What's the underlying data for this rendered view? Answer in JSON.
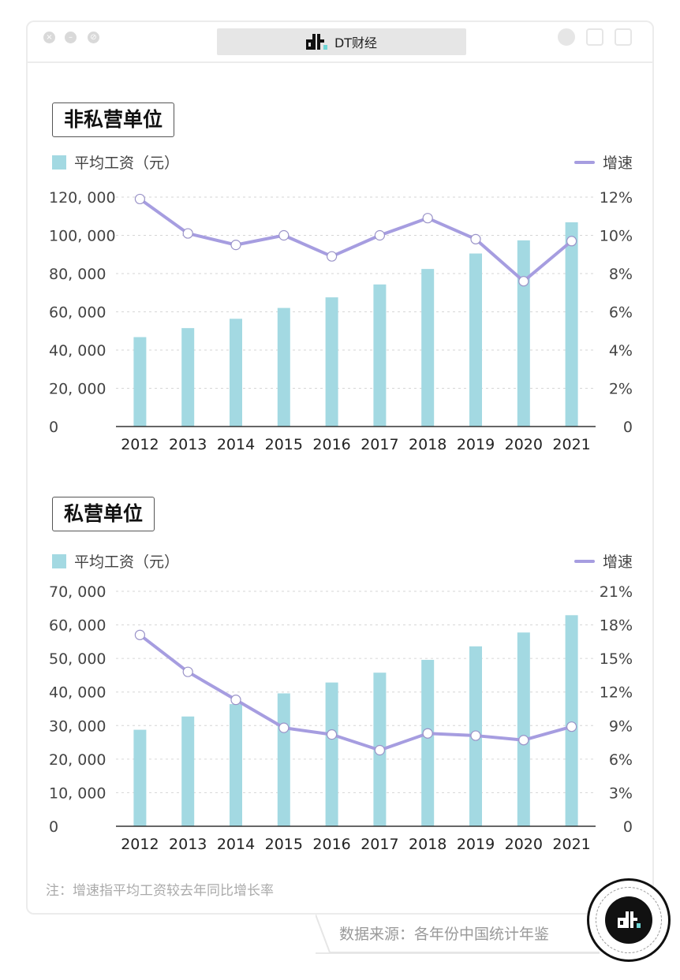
{
  "window": {
    "title": "DT财经"
  },
  "note": "注：增速指平均工资较去年同比增长率",
  "source": "数据来源：各年份中国统计年鉴",
  "colors": {
    "bar": "#a3d9e2",
    "line": "#a69de0",
    "grid": "#d6d6d6",
    "axis": "#333333",
    "accent": "#6fd6d6"
  },
  "chart_data": [
    {
      "type": "bar+line",
      "title": "非私营单位",
      "legend": {
        "bar": "平均工资（元）",
        "line": "增速",
        "position": "top"
      },
      "categories": [
        "2012",
        "2013",
        "2014",
        "2015",
        "2016",
        "2017",
        "2018",
        "2019",
        "2020",
        "2021"
      ],
      "series": [
        {
          "name": "平均工资（元）",
          "axis": "left",
          "type": "bar",
          "values": [
            46769,
            51483,
            56360,
            62029,
            67569,
            74318,
            82413,
            90501,
            97379,
            106837
          ]
        },
        {
          "name": "增速",
          "axis": "right",
          "type": "line",
          "values": [
            11.9,
            10.1,
            9.5,
            10.0,
            8.9,
            10.0,
            10.9,
            9.8,
            7.6,
            9.7
          ]
        }
      ],
      "ylim_left": [
        0,
        120000
      ],
      "yticks_left": [
        "0",
        "20, 000",
        "40, 000",
        "60, 000",
        "80, 000",
        "100, 000",
        "120, 000"
      ],
      "ylim_right": [
        0,
        12
      ],
      "yticks_right": [
        "0",
        "2%",
        "4%",
        "6%",
        "8%",
        "10%",
        "12%"
      ],
      "grid": true
    },
    {
      "type": "bar+line",
      "title": "私营单位",
      "legend": {
        "bar": "平均工资（元）",
        "line": "增速",
        "position": "top"
      },
      "categories": [
        "2012",
        "2013",
        "2014",
        "2015",
        "2016",
        "2017",
        "2018",
        "2019",
        "2020",
        "2021"
      ],
      "series": [
        {
          "name": "平均工资（元）",
          "axis": "left",
          "type": "bar",
          "values": [
            28752,
            32706,
            36390,
            39589,
            42833,
            45761,
            49575,
            53604,
            57727,
            62884
          ]
        },
        {
          "name": "增速",
          "axis": "right",
          "type": "line",
          "values": [
            17.1,
            13.8,
            11.3,
            8.8,
            8.2,
            6.8,
            8.3,
            8.1,
            7.7,
            8.9
          ]
        }
      ],
      "ylim_left": [
        0,
        70000
      ],
      "yticks_left": [
        "0",
        "10, 000",
        "20, 000",
        "30, 000",
        "40, 000",
        "50, 000",
        "60, 000",
        "70, 000"
      ],
      "ylim_right": [
        0,
        21
      ],
      "yticks_right": [
        "0",
        "3%",
        "6%",
        "9%",
        "12%",
        "15%",
        "18%",
        "21%"
      ],
      "grid": true
    }
  ]
}
